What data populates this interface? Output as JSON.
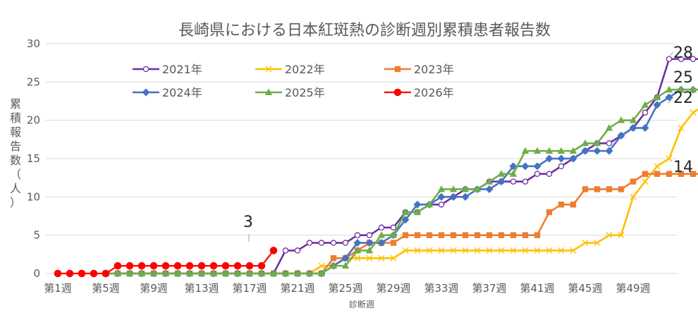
{
  "chart_data": {
    "type": "line",
    "title": "長崎県における日本紅斑熱の診断週別累積患者報告数",
    "xlabel": "診断週",
    "ylabel_chars": [
      "累",
      "積",
      "報",
      "告",
      "数",
      "（",
      "人",
      "）"
    ],
    "ylim": [
      0,
      30
    ],
    "yticks": [
      "0",
      "5",
      "10",
      "15",
      "20",
      "25",
      "30"
    ],
    "xticks": [
      {
        "week": 1,
        "label": "第1週"
      },
      {
        "week": 5,
        "label": "第5週"
      },
      {
        "week": 9,
        "label": "第9週"
      },
      {
        "week": 13,
        "label": "第13週"
      },
      {
        "week": 17,
        "label": "第17週"
      },
      {
        "week": 21,
        "label": "第21週"
      },
      {
        "week": 25,
        "label": "第25週"
      },
      {
        "week": 29,
        "label": "第29週"
      },
      {
        "week": 33,
        "label": "第33週"
      },
      {
        "week": 37,
        "label": "第37週"
      },
      {
        "week": 41,
        "label": "第41週"
      },
      {
        "week": 45,
        "label": "第45週"
      },
      {
        "week": 49,
        "label": "第49週"
      }
    ],
    "grid": true,
    "legend_position": "top-left, inside",
    "series": [
      {
        "name": "2021年",
        "color": "#7030a0",
        "marker": "circle-open",
        "start_week": 5,
        "values": [
          0,
          0,
          0,
          0,
          0,
          0,
          0,
          0,
          0,
          0,
          0,
          0,
          0,
          0,
          0,
          3,
          3,
          4,
          4,
          4,
          4,
          5,
          5,
          6,
          6,
          8,
          8,
          9,
          9,
          10,
          11,
          11,
          12,
          12,
          12,
          12,
          13,
          13,
          14,
          15,
          16,
          17,
          17,
          18,
          19,
          21,
          23,
          28,
          28,
          28,
          28,
          28,
          28,
          28,
          28,
          28,
          28,
          28
        ]
      },
      {
        "name": "2022年",
        "color": "#ffc000",
        "marker": "x",
        "start_week": 5,
        "values": [
          0,
          0,
          0,
          0,
          0,
          0,
          0,
          0,
          0,
          0,
          0,
          0,
          0,
          0,
          0,
          0,
          0,
          0,
          1,
          1,
          2,
          2,
          2,
          2,
          2,
          3,
          3,
          3,
          3,
          3,
          3,
          3,
          3,
          3,
          3,
          3,
          3,
          3,
          3,
          3,
          4,
          4,
          5,
          5,
          10,
          12,
          14,
          15,
          19,
          21,
          22,
          22,
          22,
          22,
          22,
          22,
          22,
          22
        ]
      },
      {
        "name": "2023年",
        "color": "#ed7d31",
        "marker": "square",
        "start_week": 5,
        "values": [
          0,
          0,
          0,
          0,
          0,
          0,
          0,
          0,
          0,
          0,
          0,
          0,
          0,
          0,
          0,
          0,
          0,
          0,
          0,
          2,
          2,
          3,
          4,
          4,
          4,
          5,
          5,
          5,
          5,
          5,
          5,
          5,
          5,
          5,
          5,
          5,
          5,
          8,
          9,
          9,
          11,
          11,
          11,
          11,
          12,
          13,
          13,
          13,
          13,
          13,
          13,
          13,
          13,
          14,
          14,
          14,
          14,
          14
        ]
      },
      {
        "name": "2024年",
        "color": "#4472c4",
        "marker": "diamond",
        "start_week": 5,
        "values": [
          0,
          0,
          0,
          0,
          0,
          0,
          0,
          0,
          0,
          0,
          0,
          0,
          0,
          0,
          0,
          0,
          0,
          0,
          0,
          1,
          2,
          4,
          4,
          4,
          5,
          7,
          9,
          9,
          10,
          10,
          10,
          11,
          11,
          12,
          14,
          14,
          14,
          15,
          15,
          15,
          16,
          16,
          16,
          18,
          19,
          19,
          22,
          23,
          24,
          24,
          24,
          24,
          24,
          24,
          24,
          24,
          24,
          24
        ]
      },
      {
        "name": "2025年",
        "color": "#70ad47",
        "marker": "triangle",
        "start_week": 5,
        "values": [
          0,
          0,
          0,
          0,
          0,
          0,
          0,
          0,
          0,
          0,
          0,
          0,
          0,
          0,
          0,
          0,
          0,
          0,
          0,
          1,
          1,
          3,
          3,
          5,
          5,
          8,
          8,
          9,
          11,
          11,
          11,
          11,
          12,
          13,
          13,
          16,
          16,
          16,
          16,
          16,
          17,
          17,
          19,
          20,
          20,
          22,
          23,
          24,
          24,
          24,
          24,
          24,
          24,
          25,
          25,
          25,
          25,
          25
        ]
      },
      {
        "name": "2026年",
        "color": "#ff0000",
        "marker": "circle-filled",
        "start_week": 1,
        "values": [
          0,
          0,
          0,
          0,
          0,
          1,
          1,
          1,
          1,
          1,
          1,
          1,
          1,
          1,
          1,
          1,
          1,
          1,
          3
        ]
      }
    ],
    "annotations": [
      {
        "text": "28",
        "series": "2021年"
      },
      {
        "text": "25",
        "series": "2025年"
      },
      {
        "text": "22",
        "series": "2022年"
      },
      {
        "text": "14",
        "series": "2023年"
      },
      {
        "text": "3",
        "series": "2026年"
      }
    ]
  }
}
